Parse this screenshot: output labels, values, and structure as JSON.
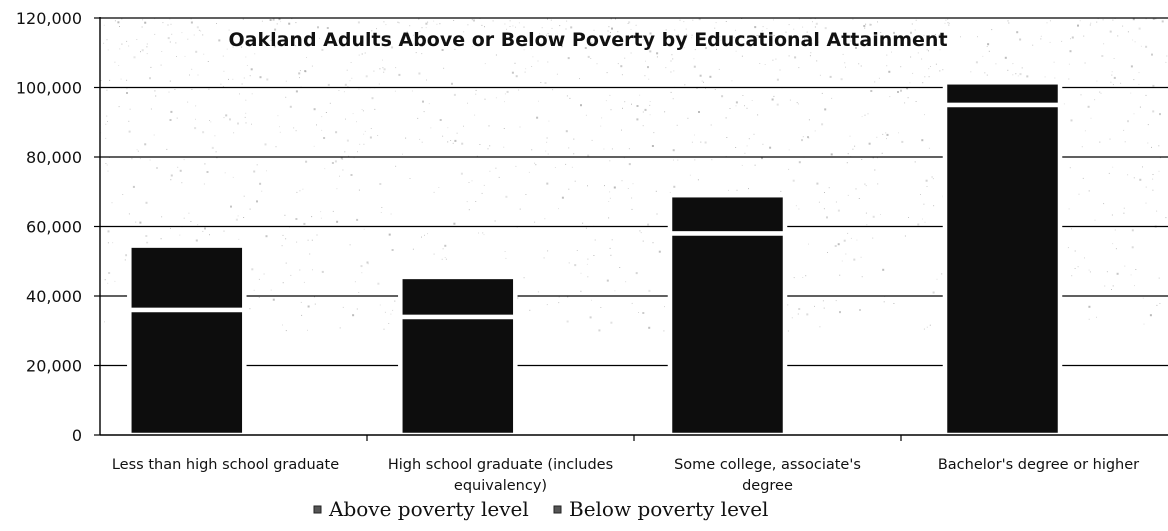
{
  "chart_data": {
    "type": "bar",
    "stacked": true,
    "title": "Oakland Adults Above or Below Poverty  by Educational Attainment",
    "xlabel": "",
    "ylabel": "",
    "categories": [
      [
        "Less than high school graduate"
      ],
      [
        "High school graduate (includes",
        "equivalency)"
      ],
      [
        "Some college, associate's",
        "degree"
      ],
      [
        "Bachelor's degree or higher"
      ]
    ],
    "series": [
      {
        "name": "Above poverty level",
        "values": [
          36000,
          34000,
          58000,
          95000
        ]
      },
      {
        "name": "Below poverty level",
        "values": [
          18500,
          11500,
          11000,
          6500
        ]
      }
    ],
    "ylim": [
      0,
      120000
    ],
    "yticks": [
      0,
      20000,
      40000,
      60000,
      80000,
      100000,
      120000
    ],
    "ytick_labels": [
      "0",
      "20,000",
      "40,000",
      "60,000",
      "80,000",
      "100,000",
      "120,000"
    ],
    "grid": true,
    "legend_position": "bottom",
    "colors": {
      "bar_fill": "#0d0d0d",
      "bar_outline": "#ffffff",
      "gridline": "#000000",
      "text": "#111111",
      "legend_marker": "#555555",
      "background": "#ffffff"
    }
  }
}
